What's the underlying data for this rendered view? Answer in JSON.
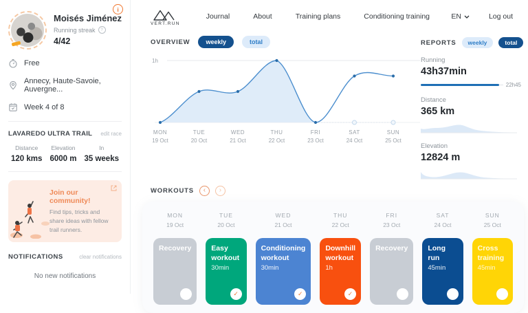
{
  "sidebar": {
    "profile": {
      "name": "Moisés Jiménez",
      "streak_label": "Running streak",
      "streak_value": "4/42"
    },
    "details": {
      "plan": "Free",
      "location": "Annecy, Haute-Savoie, Auvergne...",
      "week": "Week 4 of 8"
    },
    "race": {
      "title": "LAVAREDO ULTRA TRAIL",
      "edit_label": "edit race",
      "stats": [
        {
          "label": "Distance",
          "value": "120 kms"
        },
        {
          "label": "Elevation",
          "value": "6000 m"
        },
        {
          "label": "In",
          "value": "35 weeks"
        }
      ]
    },
    "community": {
      "title": "Join our community!",
      "body": "Find tips, tricks and share ideas with fellow trail runners."
    },
    "notifications": {
      "title": "NOTIFICATIONS",
      "clear_label": "clear notifications",
      "empty_text": "No new notifications"
    }
  },
  "nav": {
    "logo_text": "VERT.RUN",
    "items": [
      "Journal",
      "About",
      "Training plans",
      "Conditioning training"
    ],
    "language": "EN",
    "logout": "Log out"
  },
  "overview": {
    "title": "OVERVIEW",
    "toggle_weekly": "weekly",
    "toggle_total": "total",
    "selected": "weekly"
  },
  "reports": {
    "title": "REPORTS",
    "toggle_weekly": "weekly",
    "toggle_total": "total",
    "selected": "total",
    "running": {
      "label": "Running",
      "value": "43h37min",
      "marker_label": "22h45",
      "progress_percent": 78
    },
    "distance": {
      "label": "Distance",
      "value": "365 km"
    },
    "elevation": {
      "label": "Elevation",
      "value": "12824 m"
    }
  },
  "workouts": {
    "title": "WORKOUTS",
    "cards": [
      {
        "day": "MON",
        "date": "19 Oct",
        "title": "Recovery",
        "duration": "",
        "color": "#c8cdd4",
        "text": "#ffffff",
        "checked": false
      },
      {
        "day": "TUE",
        "date": "20 Oct",
        "title": "Easy workout",
        "duration": "30min",
        "color": "#00a77c",
        "text": "#ffffff",
        "checked": true
      },
      {
        "day": "WED",
        "date": "21 Oct",
        "title": "Conditioning workout",
        "duration": "30min",
        "color": "#4c84d2",
        "text": "#ffffff",
        "checked": true
      },
      {
        "day": "THU",
        "date": "22 Oct",
        "title": "Downhill workout",
        "duration": "1h",
        "color": "#f8500f",
        "text": "#ffffff",
        "checked": true
      },
      {
        "day": "FRI",
        "date": "23 Oct",
        "title": "Recovery",
        "duration": "",
        "color": "#c8cdd4",
        "text": "#ffffff",
        "checked": false
      },
      {
        "day": "SAT",
        "date": "24 Oct",
        "title": "Long run",
        "duration": "45min",
        "color": "#0b4d91",
        "text": "#ffffff",
        "checked": false
      },
      {
        "day": "SUN",
        "date": "25 Oct",
        "title": "Cross training",
        "duration": "45min",
        "color": "#ffd506",
        "text": "#fffbe4",
        "checked": false
      }
    ]
  },
  "chart_data": {
    "type": "line",
    "title": "OVERVIEW weekly training hours",
    "x": [
      "MON",
      "TUE",
      "WED",
      "THU",
      "FRI",
      "SAT",
      "SUN"
    ],
    "x_dates": [
      "19 Oct",
      "20 Oct",
      "21 Oct",
      "22 Oct",
      "23 Oct",
      "24 Oct",
      "25 Oct"
    ],
    "series": [
      {
        "name": "workout hours",
        "values": [
          0,
          0.5,
          0.5,
          1.0,
          0,
          0.75,
          0.75
        ],
        "color": "#4b8ece",
        "fill_color": "#d9e9f8",
        "fill_to_index": 4
      },
      {
        "name": "upcoming markers (not completed)",
        "x_indices": [
          5,
          6
        ],
        "values": [
          0,
          0
        ],
        "style": "hollow"
      }
    ],
    "units": "hours",
    "ylim": [
      0,
      1
    ],
    "yticks": [
      {
        "value": 1,
        "label": "1h"
      }
    ],
    "legend": "none",
    "grid": "single horizontal gridline at 1h plus zero baseline"
  },
  "colors": {
    "accent_orange": "#f0762e",
    "navy_pill": "#14518e",
    "light_pill_bg": "#ddebfa",
    "light_pill_text": "#2f7ec7",
    "chart_line": "#4b8ece",
    "chart_fill": "#d9e9f8",
    "progress_blue": "#1e6fb5",
    "banner_bg": "#fdece4",
    "banner_title": "#ef8a58"
  }
}
